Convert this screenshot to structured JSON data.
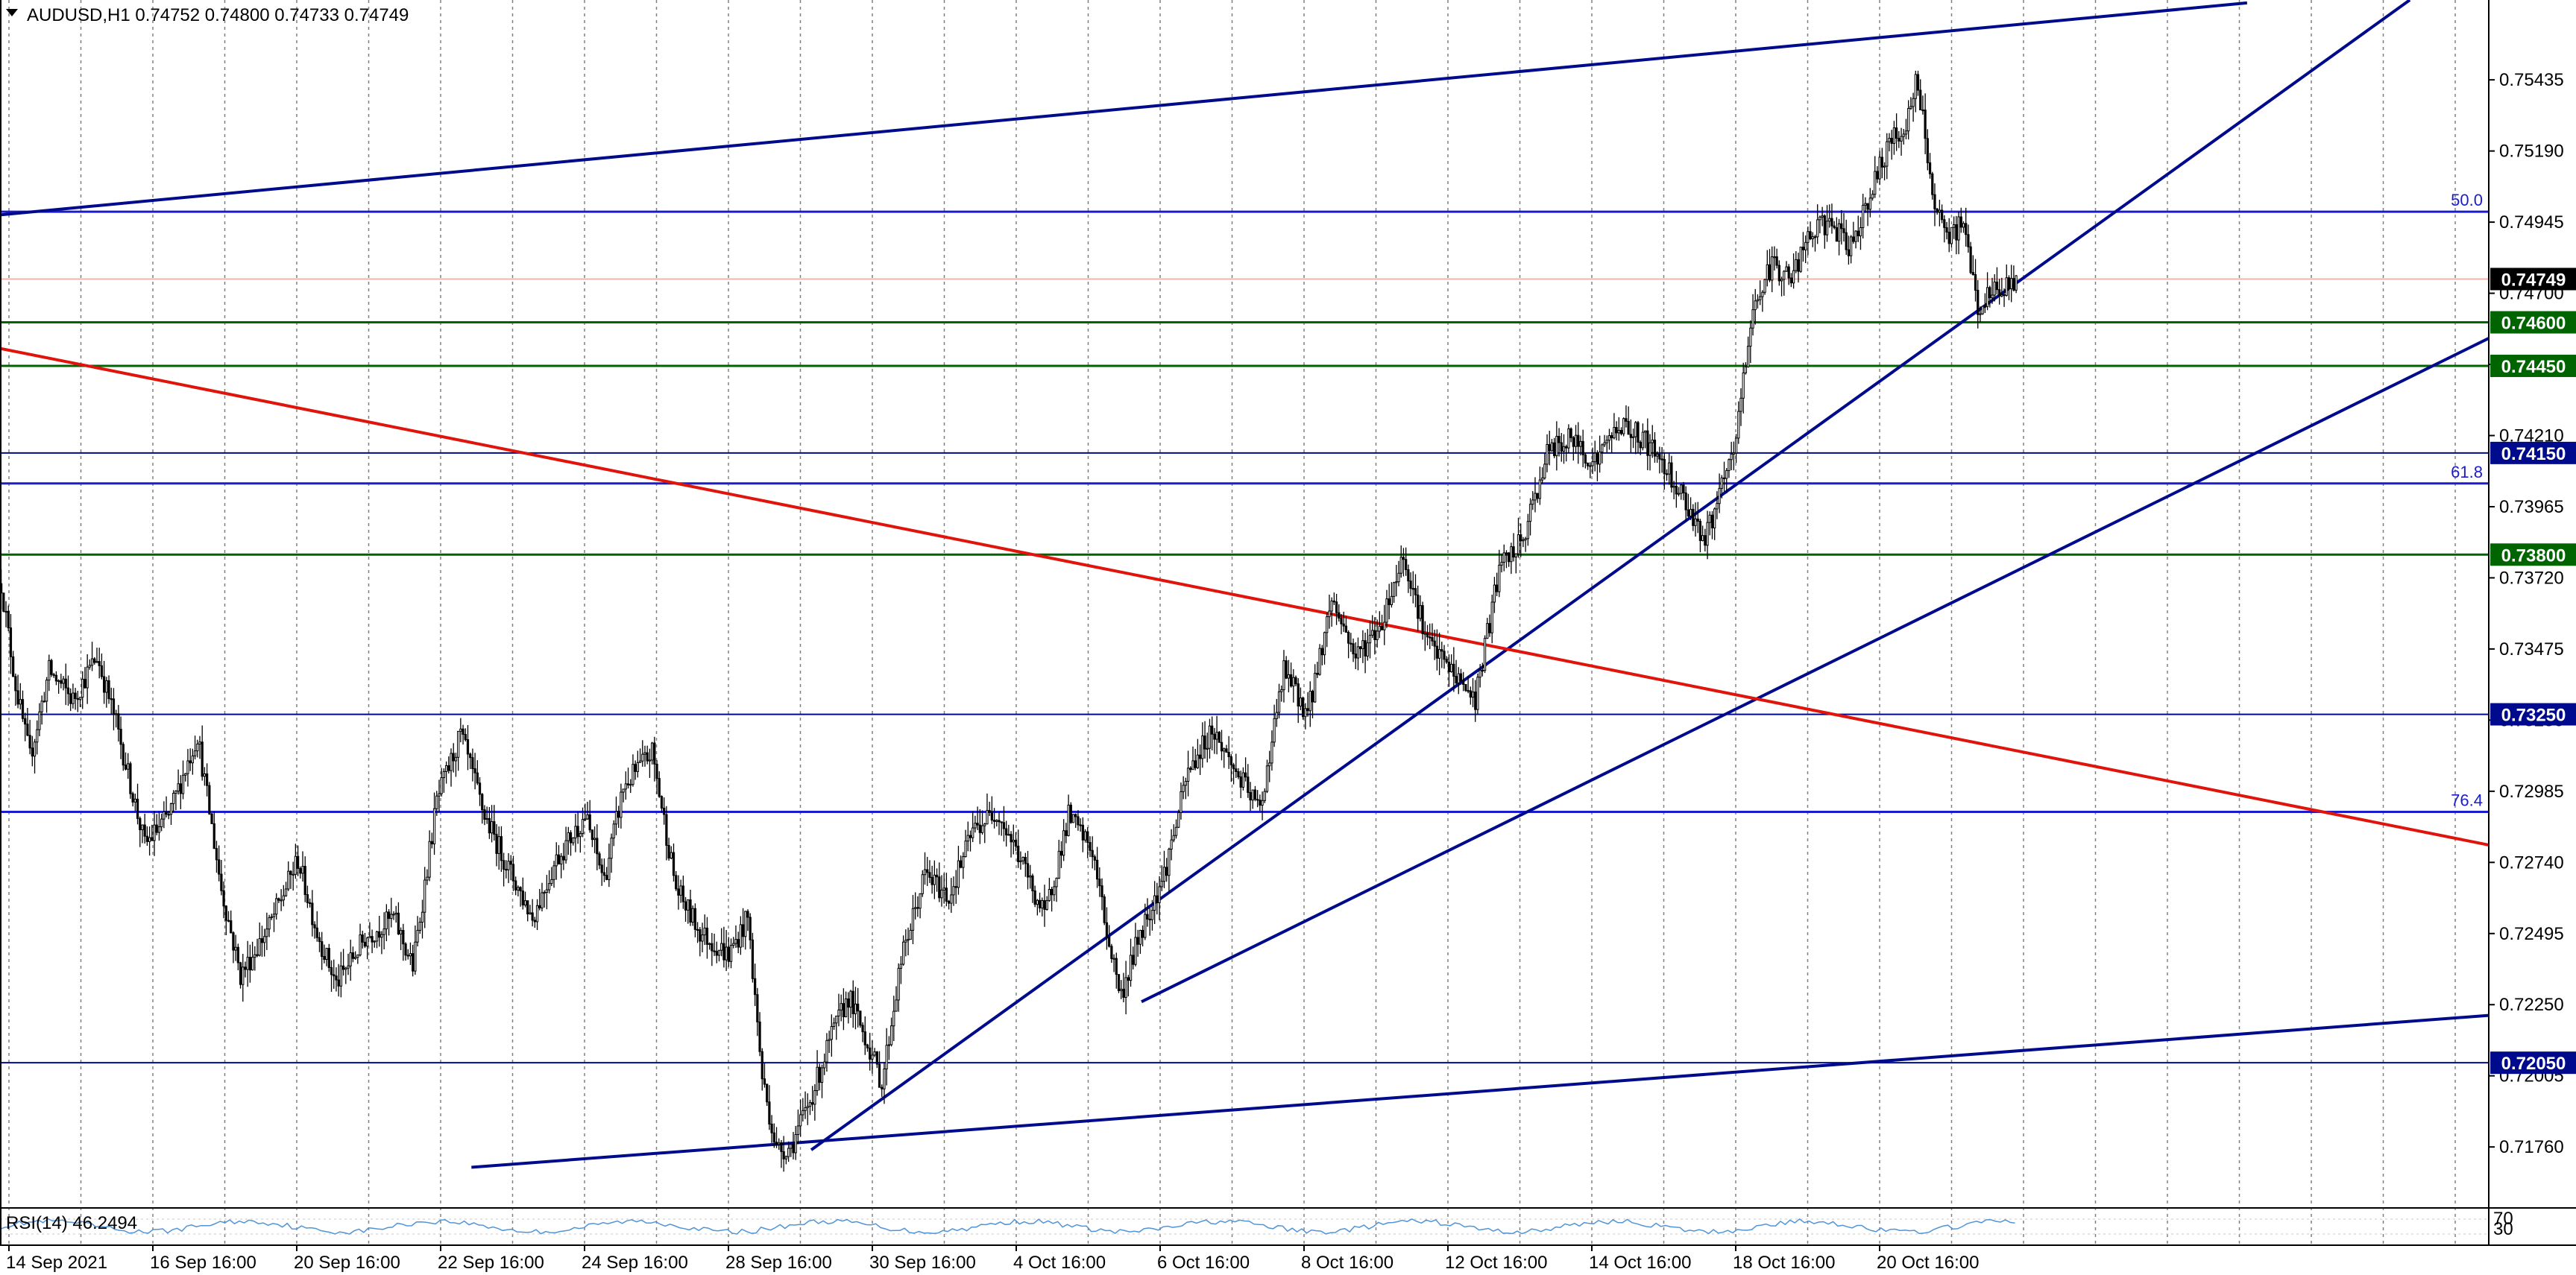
{
  "colors": {
    "background": "#ffffff",
    "axis": "#000000",
    "grid": "#808080",
    "candle": "#000000",
    "trendline": "#000a8c",
    "fibline": "#1c1ccf",
    "support": "#006400",
    "redline": "#e0140a",
    "rsi": "#4f94d9",
    "price_box": "#000000",
    "green_box": "#006400",
    "navy_box": "#000a8c"
  },
  "chart_data": {
    "type": "candlestick",
    "symbol_header": "AUDUSD,H1  0.74752 0.74800 0.74733 0.74749",
    "ylim": [
      0.7155,
      0.7571
    ],
    "yticks": [
      "0.75435",
      "0.75190",
      "0.74945",
      "0.74700",
      "0.74455",
      "0.74210",
      "0.73965",
      "0.73720",
      "0.73475",
      "0.73230",
      "0.72985",
      "0.72740",
      "0.72495",
      "0.72250",
      "0.72005",
      "0.71760"
    ],
    "xticks": [
      "14 Sep 2021",
      "16 Sep 16:00",
      "20 Sep 16:00",
      "22 Sep 16:00",
      "24 Sep 16:00",
      "28 Sep 16:00",
      "30 Sep 16:00",
      "4 Oct 16:00",
      "6 Oct 16:00",
      "8 Oct 16:00",
      "12 Oct 16:00",
      "14 Oct 16:00",
      "18 Oct 16:00",
      "20 Oct 16:00"
    ],
    "current_price": "0.74749",
    "price_path": [
      [
        0,
        0.737
      ],
      [
        6,
        0.7335
      ],
      [
        12,
        0.731
      ],
      [
        20,
        0.734
      ],
      [
        30,
        0.733
      ],
      [
        40,
        0.7345
      ],
      [
        48,
        0.7322
      ],
      [
        60,
        0.728
      ],
      [
        70,
        0.729
      ],
      [
        82,
        0.7318
      ],
      [
        92,
        0.7265
      ],
      [
        100,
        0.7235
      ],
      [
        112,
        0.7252
      ],
      [
        124,
        0.7275
      ],
      [
        132,
        0.725
      ],
      [
        140,
        0.7232
      ],
      [
        152,
        0.7248
      ],
      [
        164,
        0.7255
      ],
      [
        172,
        0.7238
      ],
      [
        182,
        0.7295
      ],
      [
        192,
        0.7318
      ],
      [
        202,
        0.729
      ],
      [
        212,
        0.7272
      ],
      [
        222,
        0.7255
      ],
      [
        232,
        0.7275
      ],
      [
        244,
        0.729
      ],
      [
        252,
        0.7268
      ],
      [
        260,
        0.73
      ],
      [
        272,
        0.7312
      ],
      [
        282,
        0.7265
      ],
      [
        292,
        0.725
      ],
      [
        304,
        0.7242
      ],
      [
        312,
        0.7255
      ],
      [
        318,
        0.72
      ],
      [
        324,
        0.7175
      ],
      [
        330,
        0.7176
      ],
      [
        338,
        0.7192
      ],
      [
        346,
        0.7212
      ],
      [
        354,
        0.7228
      ],
      [
        362,
        0.7212
      ],
      [
        368,
        0.7198
      ],
      [
        376,
        0.724
      ],
      [
        386,
        0.727
      ],
      [
        396,
        0.7262
      ],
      [
        406,
        0.7285
      ],
      [
        416,
        0.7292
      ],
      [
        426,
        0.7275
      ],
      [
        436,
        0.7255
      ],
      [
        446,
        0.729
      ],
      [
        456,
        0.7278
      ],
      [
        462,
        0.725
      ],
      [
        468,
        0.7228
      ],
      [
        476,
        0.725
      ],
      [
        486,
        0.727
      ],
      [
        496,
        0.7305
      ],
      [
        506,
        0.732
      ],
      [
        516,
        0.7305
      ],
      [
        526,
        0.7292
      ],
      [
        536,
        0.734
      ],
      [
        546,
        0.7325
      ],
      [
        556,
        0.7365
      ],
      [
        566,
        0.7345
      ],
      [
        576,
        0.7355
      ],
      [
        586,
        0.738
      ],
      [
        596,
        0.735
      ],
      [
        606,
        0.734
      ],
      [
        616,
        0.733
      ],
      [
        626,
        0.7375
      ],
      [
        636,
        0.7385
      ],
      [
        646,
        0.7415
      ],
      [
        656,
        0.742
      ],
      [
        666,
        0.7412
      ],
      [
        676,
        0.7425
      ],
      [
        686,
        0.742
      ],
      [
        696,
        0.741
      ],
      [
        706,
        0.7395
      ],
      [
        712,
        0.7385
      ],
      [
        718,
        0.74
      ],
      [
        724,
        0.7415
      ],
      [
        732,
        0.7465
      ],
      [
        740,
        0.748
      ],
      [
        748,
        0.7475
      ],
      [
        756,
        0.749
      ],
      [
        764,
        0.7495
      ],
      [
        772,
        0.7485
      ],
      [
        780,
        0.7502
      ],
      [
        788,
        0.752
      ],
      [
        796,
        0.7528
      ],
      [
        800,
        0.7542
      ],
      [
        804,
        0.7525
      ],
      [
        808,
        0.7498
      ],
      [
        814,
        0.7488
      ],
      [
        820,
        0.7495
      ],
      [
        826,
        0.7465
      ],
      [
        832,
        0.747
      ],
      [
        838,
        0.7472
      ],
      [
        842,
        0.7475
      ]
    ],
    "rsi": {
      "label": "RSI(14) 46.2494",
      "value": 46.2494,
      "levels": [
        "70",
        "30"
      ],
      "ylim": [
        0,
        100
      ]
    },
    "horizontal_levels": [
      {
        "price": 0.74981,
        "kind": "fib",
        "label": "50.0"
      },
      {
        "price": 0.746,
        "kind": "support",
        "label": "0.74600"
      },
      {
        "price": 0.7445,
        "kind": "support",
        "label": "0.74450"
      },
      {
        "price": 0.7415,
        "kind": "navy",
        "label": "0.74150"
      },
      {
        "price": 0.74045,
        "kind": "fib",
        "label": "61.8"
      },
      {
        "price": 0.738,
        "kind": "support",
        "label": "0.73800"
      },
      {
        "price": 0.7325,
        "kind": "navy",
        "label": "0.73250"
      },
      {
        "price": 0.72914,
        "kind": "fib",
        "label": "76.4"
      },
      {
        "price": 0.7205,
        "kind": "navy",
        "label": "0.72050"
      }
    ],
    "trendlines": [
      {
        "name": "upper-channel-line",
        "color": "trendline",
        "x1": 0,
        "y1": 0.7497,
        "x2": 939,
        "y2": 0.757
      },
      {
        "name": "lower-channel-line",
        "color": "trendline",
        "x1": 197,
        "y1": 0.7169,
        "x2": 1040,
        "y2": 0.72213
      },
      {
        "name": "steep-support-line",
        "color": "trendline",
        "x1": 339,
        "y1": 0.7175,
        "x2": 1007,
        "y2": 0.7571
      },
      {
        "name": "medium-support-line",
        "color": "trendline",
        "x1": 477,
        "y1": 0.7226,
        "x2": 1040,
        "y2": 0.74545
      },
      {
        "name": "red-descending-line",
        "color": "redline",
        "x1": 0,
        "y1": 0.7451,
        "x2": 1040,
        "y2": 0.728
      }
    ]
  }
}
